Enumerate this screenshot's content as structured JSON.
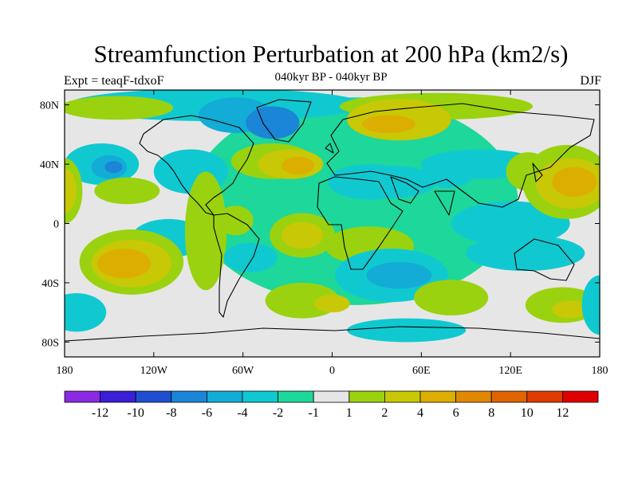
{
  "figure": {
    "title": "Streamfunction Perturbation at 200 hPa (km2/s)",
    "subtitle": "040kyr BP - 040kyr BP",
    "left_string": "Expt = teaqF-tdxoF",
    "right_string": "DJF",
    "projection": "cylindrical equidistant",
    "lon_range": [
      -180,
      180
    ],
    "lat_range": [
      -90,
      90
    ]
  },
  "axes": {
    "x_ticks": [
      {
        "lon": -180,
        "label": "180"
      },
      {
        "lon": -120,
        "label": "120W"
      },
      {
        "lon": -60,
        "label": "60W"
      },
      {
        "lon": 0,
        "label": "0"
      },
      {
        "lon": 60,
        "label": "60E"
      },
      {
        "lon": 120,
        "label": "120E"
      },
      {
        "lon": 180,
        "label": "180"
      }
    ],
    "y_ticks": [
      {
        "lat": 80,
        "label": "80N"
      },
      {
        "lat": 40,
        "label": "40N"
      },
      {
        "lat": 0,
        "label": "0"
      },
      {
        "lat": -40,
        "label": "40S"
      },
      {
        "lat": -80,
        "label": "80S"
      }
    ]
  },
  "colorbar": {
    "colors": [
      "#8a2be2",
      "#3a1fd6",
      "#1f4fd0",
      "#1b85d8",
      "#12acd6",
      "#10c9d0",
      "#1ed79a",
      "#e6e6e6",
      "#9ad20f",
      "#c8c806",
      "#dcae00",
      "#e08800",
      "#e06400",
      "#e03c00",
      "#e00000"
    ],
    "labels": [
      "-12",
      "-10",
      "-8",
      "-6",
      "-4",
      "-2",
      "-1",
      "1",
      "2",
      "4",
      "6",
      "8",
      "10",
      "12"
    ]
  },
  "field_regions": [
    {
      "lon": 15,
      "lat": 15,
      "rlon": 110,
      "rlat": 70,
      "level": -1
    },
    {
      "lon": 120,
      "lat": 0,
      "rlon": 40,
      "rlat": 15,
      "level": -2
    },
    {
      "lon": -78,
      "lat": 80,
      "rlon": 100,
      "rlat": 11,
      "level": -2
    },
    {
      "lon": -65,
      "lat": 73,
      "rlon": 25,
      "rlat": 12,
      "level": -4
    },
    {
      "lon": -40,
      "lat": 68,
      "rlon": 18,
      "rlat": 11,
      "level": -6
    },
    {
      "lon": -145,
      "lat": 78,
      "rlon": 38,
      "rlat": 8,
      "level": 2
    },
    {
      "lon": 70,
      "lat": 79,
      "rlon": 65,
      "rlat": 9,
      "level": 2
    },
    {
      "lon": 45,
      "lat": 70,
      "rlon": 35,
      "rlat": 14,
      "level": 4
    },
    {
      "lon": 38,
      "lat": 67,
      "rlon": 18,
      "rlat": 6,
      "level": 6
    },
    {
      "lon": -155,
      "lat": 40,
      "rlon": 25,
      "rlat": 14,
      "level": -2
    },
    {
      "lon": -150,
      "lat": 38,
      "rlon": 12,
      "rlat": 8,
      "level": -4
    },
    {
      "lon": -147,
      "lat": 38,
      "rlon": 6,
      "rlat": 4,
      "level": -6
    },
    {
      "lon": -95,
      "lat": 35,
      "rlon": 25,
      "rlat": 15,
      "level": -2
    },
    {
      "lon": -40,
      "lat": 42,
      "rlon": 28,
      "rlat": 12,
      "level": 2
    },
    {
      "lon": -28,
      "lat": 40,
      "rlon": 22,
      "rlat": 10,
      "level": 4
    },
    {
      "lon": -23,
      "lat": 39,
      "rlon": 11,
      "rlat": 6,
      "level": 6
    },
    {
      "lon": 25,
      "lat": 28,
      "rlon": 28,
      "rlat": 12,
      "level": -2
    },
    {
      "lon": 40,
      "lat": 28,
      "rlon": 30,
      "rlat": 11,
      "level": -2
    },
    {
      "lon": 100,
      "lat": 40,
      "rlon": 40,
      "rlat": 10,
      "level": -2
    },
    {
      "lon": 78,
      "lat": 35,
      "rlon": 18,
      "rlat": 11,
      "level": -2
    },
    {
      "lon": 132,
      "lat": 35,
      "rlon": 15,
      "rlat": 13,
      "level": 2
    },
    {
      "lon": 158,
      "lat": 28,
      "rlon": 30,
      "rlat": 25,
      "level": 2
    },
    {
      "lon": 161,
      "lat": 27,
      "rlon": 24,
      "rlat": 17,
      "level": 4
    },
    {
      "lon": 163,
      "lat": 28,
      "rlon": 15,
      "rlat": 10,
      "level": 6
    },
    {
      "lon": -180,
      "lat": 22,
      "rlon": 12,
      "rlat": 22,
      "level": 2
    },
    {
      "lon": -180,
      "lat": 22,
      "rlon": 8,
      "rlat": 15,
      "level": 4
    },
    {
      "lon": -138,
      "lat": 22,
      "rlon": 22,
      "rlat": 9,
      "level": 2
    },
    {
      "lon": -65,
      "lat": 2,
      "rlon": 12,
      "rlat": 10,
      "level": 2
    },
    {
      "lon": -110,
      "lat": -10,
      "rlon": 25,
      "rlat": 13,
      "level": -2
    },
    {
      "lon": -130,
      "lat": -10,
      "rlon": 10,
      "rlat": 6,
      "level": -4
    },
    {
      "lon": -135,
      "lat": -26,
      "rlon": 35,
      "rlat": 22,
      "level": 2
    },
    {
      "lon": -135,
      "lat": -27,
      "rlon": 27,
      "rlat": 16,
      "level": 4
    },
    {
      "lon": -140,
      "lat": -27,
      "rlon": 18,
      "rlat": 10,
      "level": 6
    },
    {
      "lon": -85,
      "lat": -5,
      "rlon": 14,
      "rlat": 40,
      "level": 2
    },
    {
      "lon": -55,
      "lat": -23,
      "rlon": 18,
      "rlat": 10,
      "level": -2
    },
    {
      "lon": -20,
      "lat": -8,
      "rlon": 22,
      "rlat": 15,
      "level": 2
    },
    {
      "lon": -20,
      "lat": -8,
      "rlon": 14,
      "rlat": 9,
      "level": 4
    },
    {
      "lon": 25,
      "lat": -15,
      "rlon": 30,
      "rlat": 13,
      "level": 2
    },
    {
      "lon": 40,
      "lat": -35,
      "rlon": 38,
      "rlat": 18,
      "level": -2
    },
    {
      "lon": 45,
      "lat": -35,
      "rlon": 22,
      "rlat": 9,
      "level": -4
    },
    {
      "lon": 130,
      "lat": -20,
      "rlon": 40,
      "rlat": 12,
      "level": -2
    },
    {
      "lon": 155,
      "lat": -55,
      "rlon": 25,
      "rlat": 12,
      "level": 2
    },
    {
      "lon": 160,
      "lat": -58,
      "rlon": 12,
      "rlat": 6,
      "level": 4
    },
    {
      "lon": 180,
      "lat": -55,
      "rlon": 12,
      "rlat": 20,
      "level": -2
    },
    {
      "lon": -172,
      "lat": -60,
      "rlon": 20,
      "rlat": 13,
      "level": -2
    },
    {
      "lon": -20,
      "lat": -52,
      "rlon": 25,
      "rlat": 12,
      "level": 2
    },
    {
      "lon": 0,
      "lat": -54,
      "rlon": 12,
      "rlat": 6,
      "level": 4
    },
    {
      "lon": 80,
      "lat": -50,
      "rlon": 25,
      "rlat": 12,
      "level": 2
    },
    {
      "lon": 50,
      "lat": -72,
      "rlon": 40,
      "rlat": 8,
      "level": -2
    }
  ]
}
